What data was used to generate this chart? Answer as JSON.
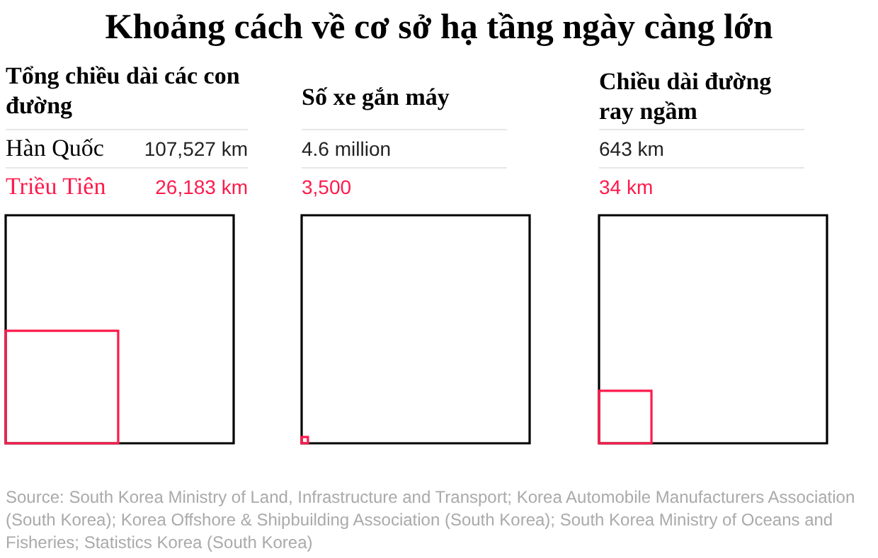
{
  "chart_data": {
    "type": "other",
    "title": "Khoảng cách về cơ sở hạ tầng ngày càng lớn",
    "categories": [
      "Tổng chiều dài các con đường",
      "Số xe gắn máy",
      "Chiều dài đường ray ngầm"
    ],
    "series": [
      {
        "name": "Hàn Quốc",
        "color": "#000000",
        "values": [
          107527,
          4600000,
          643
        ],
        "value_labels": [
          "107,527 km",
          "4.6 million",
          "643 km"
        ]
      },
      {
        "name": "Triều Tiên",
        "color": "#ff1a4b",
        "values": [
          26183,
          3500,
          34
        ],
        "value_labels": [
          "26,183 km",
          "3,500",
          "34 km"
        ]
      }
    ],
    "annotations": [
      "Source: South Korea Ministry of Land, Infrastructure and Transport; Korea Automobile Manufacturers Association (South Korea); Korea Offshore & Shipbuilding Association (South Korea); South Korea Ministry of Oceans and Fisheries; Statistics Korea (South Korea)"
    ]
  }
}
